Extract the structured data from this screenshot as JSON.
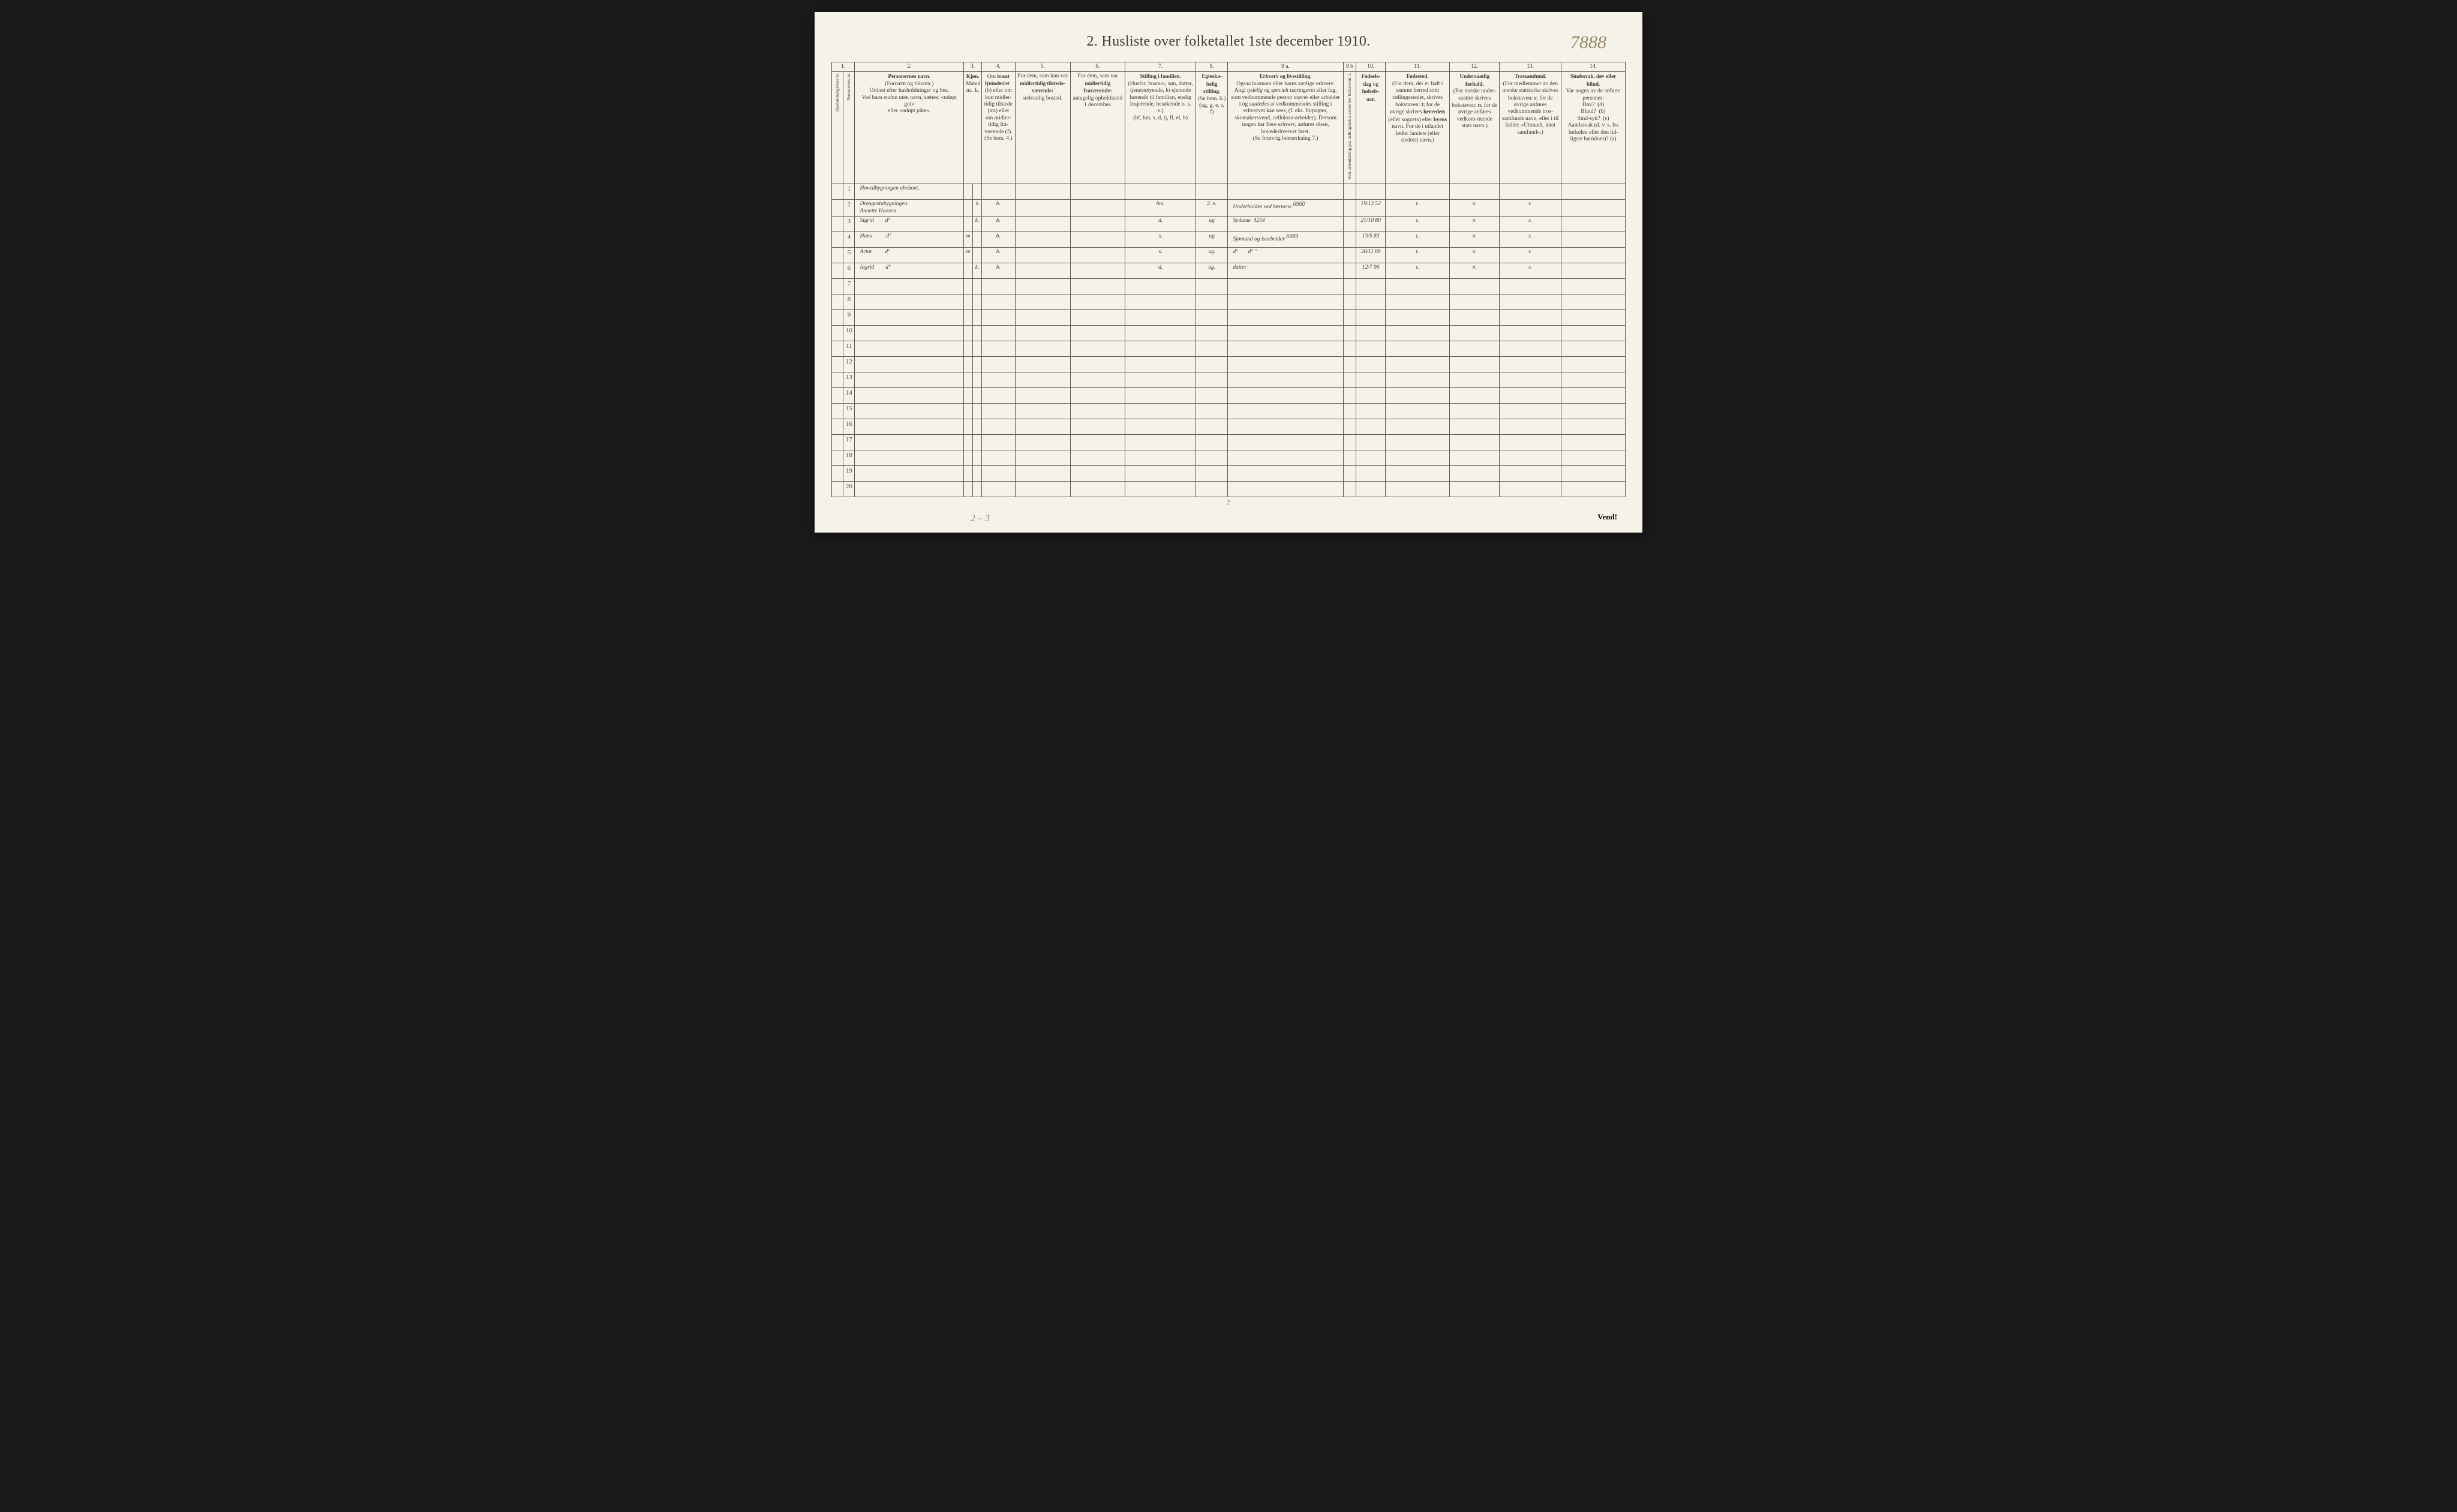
{
  "title": "2.  Husliste over folketallet 1ste december 1910.",
  "corner_number": "7888",
  "margin_note": "2 – 3",
  "page_number": "2",
  "vend": "Vend!",
  "column_numbers": [
    "1.",
    "2.",
    "3.",
    "4.",
    "5.",
    "6.",
    "7.",
    "8.",
    "9 a.",
    "9 b",
    "10.",
    "11.",
    "12.",
    "13.",
    "14."
  ],
  "headers": {
    "c1": "Husholdningernes nr.",
    "c1b": "Personernes nr.",
    "c2": "<b>Personernes navn.</b><br>(Fornavn og tilnavn.)<br>Ordnet efter husholdninger og hus.<br>Ved barn endnu uten navn, sættes: «udøpt gut»<br>eller «udøpt pike».",
    "c3": "<b>Kjøn.</b><br>Mænd.&nbsp;&nbsp;Kvinder.<br>m.&nbsp;&nbsp;k.",
    "c4": "Om <b>bosat</b> paa stedet (b) eller om kun midler-tidig tilstede (mt) eller om midler-tidig fra-værende (f). (Se bem. 4.)",
    "c5": "For dem, som kun var <b>midlertidig tilstede-værende:</b><br>sedvanlig bosted.",
    "c6": "For dem, som var <b>midlertidig fraværende:</b><br>antagelig opholdssted 1 december.",
    "c7": "<b>Stilling i familien.</b><br>(Husfar, husmor, søn, datter, tjenestetyende, lo-sjerende hørende til familien, enslig losjerende, besøkende o. s. v.)<br>(hf, hm, s, d, tj, fl, el, b)",
    "c8": "<b>Egteska-belig stilling.</b><br>(Se bem. 6.)<br>(ug, g, e, s, f)",
    "c9a": "<b>Erhverv og livsstilling.</b><br>Ogsaa husmors eller barns særlige erhverv.<br>Angi <i>tydelig</i> og <i>specielt</i> næringsvei eller fag, som vedkommende person utøver eller arbeider i og <i>saaledes</i> at vedkommendes stilling i erhvervet kan sees, (f. eks. forpagter, skomakersvend, cellulose-arbeider). Dersom nogen har flere erhverv, anføres disse, hovederhvervet først.<br>(Se forøvrig bemærkning 7.)",
    "c9b": "Hvis arbeidsledig paa tællingstiden sættes her bokstaven: l.",
    "c10": "<b>Fødsels-dag</b> og <b>fødsels-aar.</b>",
    "c11": "<b>Fødested.</b><br>(For dem, der er født i samme herred som tællingsstedet, skrives bokstaven: <b>t</b>; for de øvrige skrives <b>herredets</b> (eller sognets) eller <b>byens</b> navn. For de i utlandet fødte: landets (eller stedets) navn.)",
    "c12": "<b>Undersaatlig forhold.</b><br>(For norske under-saatter skrives bokstaven: <b>n</b>; for de øvrige anføres vedkom-mende stats navn.)",
    "c13": "<b>Trossamfund.</b><br>(For medlemmer av den norske statskirke skrives bokstaven: <b>s</b>; for de øvrige anføres vedkommende tros-samfunds navn, eller i til fælde: «Uttraadt, intet samfund».)",
    "c14": "<b>Sindssvak, døv eller blind.</b><br>Var nogen av de anførte personer:<br>Døv?&nbsp;&nbsp;(d)<br>Blind?&nbsp;&nbsp;(b)<br>Sind-syk?&nbsp;&nbsp;(s)<br>Aandssvak (d. v. s. fra fødselen eller den tid-ligste barndom)? (a)"
  },
  "rows": [
    {
      "n": "1",
      "name": "Hovedbygningen ubeboet.",
      "m": "",
      "k": "",
      "b": "",
      "c5": "",
      "c6": "",
      "fam": "",
      "eg": "",
      "erh": "",
      "l": "",
      "dob": "",
      "fst": "",
      "und": "",
      "tro": "",
      "ssv": ""
    },
    {
      "n": "2",
      "name": "Drengestubygningen.<br>Annette Hansen",
      "m": "",
      "k": "k",
      "b": "b.",
      "c5": "",
      "c6": "",
      "fam": "hm.",
      "eg": "2. e.",
      "erh": "Underholdes ved børnene <span class='superscript'>6900</span>",
      "l": "",
      "dob": "19/12 52",
      "fst": "t.",
      "und": "n.",
      "tro": "s.",
      "ssv": ""
    },
    {
      "n": "3",
      "name": "Sigrid&nbsp;&nbsp;&nbsp;&nbsp;&nbsp;&nbsp;&nbsp;&nbsp;d°",
      "m": "",
      "k": "k.",
      "b": "b.",
      "c5": "",
      "c6": "",
      "fam": "d.",
      "eg": "ug",
      "erh": "Sydame&nbsp;&nbsp;4254",
      "l": "",
      "dob": "21/10 80",
      "fst": "t.",
      "und": "n.",
      "tro": "s.",
      "ssv": ""
    },
    {
      "n": "4",
      "name": "Hans&nbsp;&nbsp;&nbsp;&nbsp;&nbsp;&nbsp;&nbsp;&nbsp;&nbsp;&nbsp;d°",
      "m": "m",
      "k": "",
      "b": "b.",
      "c5": "",
      "c6": "",
      "fam": "s.",
      "eg": "ug",
      "erh": "Sjømand og isarbeider <span class='superscript'>6989</span>",
      "l": "",
      "dob": "13/5 83",
      "fst": "t.",
      "und": "n.",
      "tro": "s.",
      "ssv": ""
    },
    {
      "n": "5",
      "name": "Artur&nbsp;&nbsp;&nbsp;&nbsp;&nbsp;&nbsp;&nbsp;&nbsp;&nbsp;d°",
      "m": "m",
      "k": "",
      "b": "b.",
      "c5": "",
      "c6": "",
      "fam": "s.",
      "eg": "ug.",
      "erh": "d°&nbsp;&nbsp;&nbsp;&nbsp;&nbsp;&nbsp;&nbsp;d°&nbsp;\"",
      "l": "",
      "dob": "20/11 88",
      "fst": "t.",
      "und": "n.",
      "tro": "s.",
      "ssv": ""
    },
    {
      "n": "6",
      "name": "Ingrid&nbsp;&nbsp;&nbsp;&nbsp;&nbsp;&nbsp;&nbsp;&nbsp;d°",
      "m": "",
      "k": "k.",
      "b": "b.",
      "c5": "",
      "c6": "",
      "fam": "d.",
      "eg": "ug.",
      "erh": "datter",
      "l": "",
      "dob": "12/7 96",
      "fst": "t.",
      "und": "n.",
      "tro": "s.",
      "ssv": ""
    }
  ],
  "empty_rows": [
    "7",
    "8",
    "9",
    "10",
    "11",
    "12",
    "13",
    "14",
    "15",
    "16",
    "17",
    "18",
    "19",
    "20"
  ],
  "colors": {
    "paper": "#f5f2e8",
    "ink": "#3a3a3a",
    "script": "#4a3a2a",
    "border": "#5a5a5a"
  }
}
